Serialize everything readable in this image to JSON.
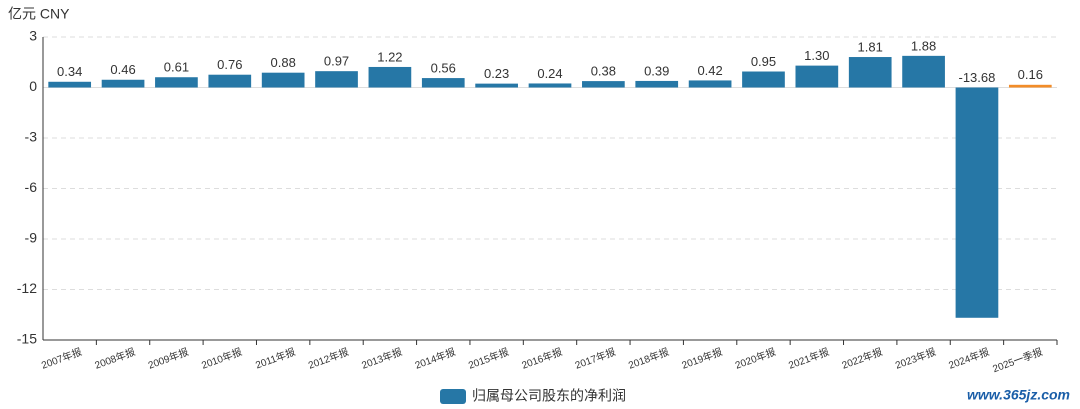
{
  "chart_data": {
    "type": "bar",
    "y_axis_label": "亿元  CNY",
    "categories": [
      "2007年报",
      "2008年报",
      "2009年报",
      "2010年报",
      "2011年报",
      "2012年报",
      "2013年报",
      "2014年报",
      "2015年报",
      "2016年报",
      "2017年报",
      "2018年报",
      "2019年报",
      "2020年报",
      "2021年报",
      "2022年报",
      "2023年报",
      "2024年报",
      "2025一季报"
    ],
    "series": [
      {
        "name": "归属母公司股东的净利润",
        "color": "#2677a6",
        "values": [
          0.34,
          0.46,
          0.61,
          0.76,
          0.88,
          0.97,
          1.22,
          0.56,
          0.23,
          0.24,
          0.38,
          0.39,
          0.42,
          0.95,
          1.3,
          1.81,
          1.88,
          -13.68,
          0.16
        ],
        "value_labels": [
          "0.34",
          "0.46",
          "0.61",
          "0.76",
          "0.88",
          "0.97",
          "1.22",
          "0.56",
          "0.23",
          "0.24",
          "0.38",
          "0.39",
          "0.42",
          "0.95",
          "1.30",
          "1.81",
          "1.88",
          "-13.68",
          "0.16"
        ],
        "colors": [
          "#2677a6",
          "#2677a6",
          "#2677a6",
          "#2677a6",
          "#2677a6",
          "#2677a6",
          "#2677a6",
          "#2677a6",
          "#2677a6",
          "#2677a6",
          "#2677a6",
          "#2677a6",
          "#2677a6",
          "#2677a6",
          "#2677a6",
          "#2677a6",
          "#2677a6",
          "#2677a6",
          "#f28c28"
        ]
      }
    ],
    "ylim": [
      -15,
      3
    ],
    "yticks": [
      -15,
      -12,
      -9,
      -6,
      -3,
      0,
      3
    ],
    "grid": true,
    "legend": "bottom",
    "watermark": "www.365jz.com"
  }
}
